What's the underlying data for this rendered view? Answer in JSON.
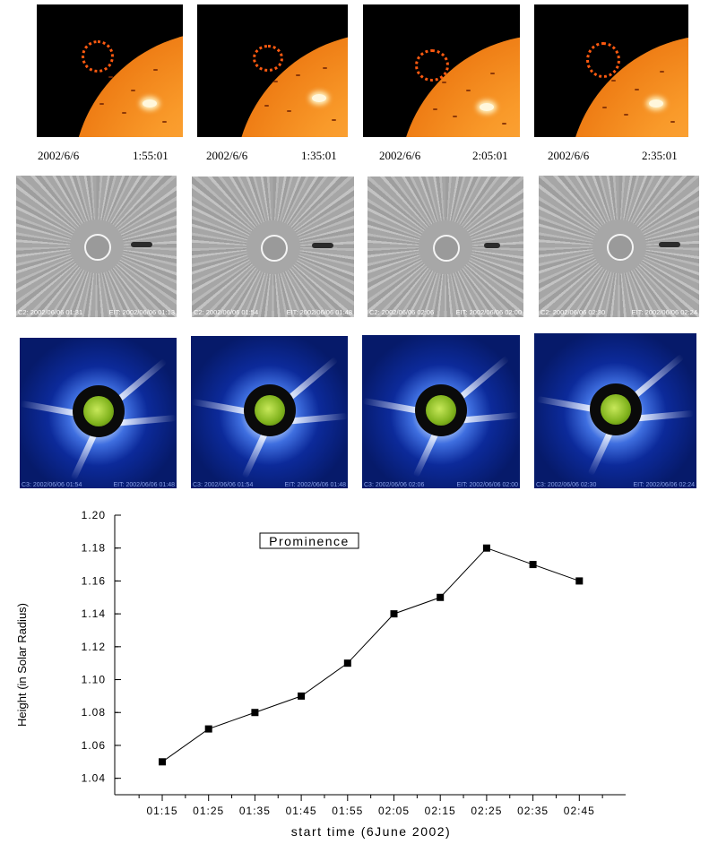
{
  "euv_panels": [
    {
      "date": "2002/6/6",
      "time": "1:55:01"
    },
    {
      "date": "2002/6/6",
      "time": "1:35:01"
    },
    {
      "date": "2002/6/6",
      "time": "2:05:01"
    },
    {
      "date": "2002/6/6",
      "time": "2:35:01"
    }
  ],
  "c2_panels": [
    {
      "c2": "C2: 2002/06/06 01:31",
      "eit": "EIT: 2002/06/06 01:13"
    },
    {
      "c2": "C2: 2002/06/06 01:54",
      "eit": "EIT: 2002/06/06 01:48"
    },
    {
      "c2": "C2: 2002/06/06 02:06",
      "eit": "EIT: 2002/06/06 02:00"
    },
    {
      "c2": "C2: 2002/06/06 02:30",
      "eit": "EIT: 2002/06/06 02:24"
    }
  ],
  "c3_panels": [
    {
      "c3": "C3: 2002/06/06 01:54",
      "eit": "EIT: 2002/06/06 01:48"
    },
    {
      "c3": "C3: 2002/06/06 01:54",
      "eit": "EIT: 2002/06/06 01:48"
    },
    {
      "c3": "C3: 2002/06/06 02:06",
      "eit": "EIT: 2002/06/06 02:00"
    },
    {
      "c3": "C3: 2002/06/06 02:30",
      "eit": "EIT: 2002/06/06 02:24"
    }
  ],
  "chart_data": {
    "type": "line",
    "title": "Prominence",
    "xlabel": "start time (6June 2002)",
    "ylabel": "Height (in Solar Radius)",
    "categories": [
      "01:15",
      "01:25",
      "01:35",
      "01:45",
      "01:55",
      "02:05",
      "02:15",
      "02:25",
      "02:35",
      "02:45"
    ],
    "values": [
      1.05,
      1.07,
      1.08,
      1.09,
      1.11,
      1.14,
      1.15,
      1.18,
      1.17,
      1.16
    ],
    "ylim": [
      1.03,
      1.2
    ],
    "yticks": [
      "1.04",
      "1.06",
      "1.08",
      "1.10",
      "1.12",
      "1.14",
      "1.16",
      "1.18",
      "1.20"
    ],
    "marker": "square",
    "grid": false
  }
}
